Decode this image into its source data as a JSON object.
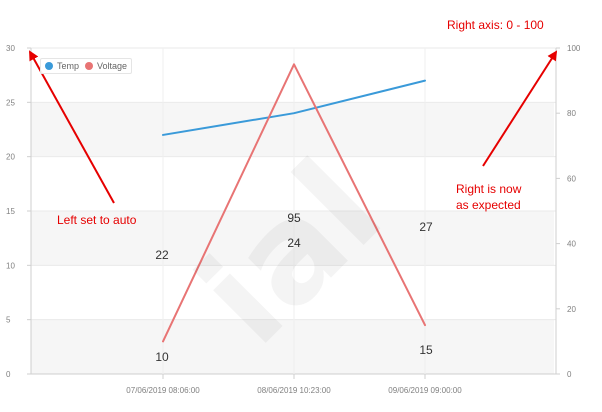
{
  "chart_data": {
    "type": "line",
    "categories": [
      "07/06/2019 08:06:00",
      "08/06/2019 10:23:00",
      "09/06/2019 09:00:00"
    ],
    "series": [
      {
        "name": "Temp",
        "axis": "left",
        "color": "#3a9ad9",
        "values": [
          22,
          24,
          27
        ]
      },
      {
        "name": "Voltage",
        "axis": "right",
        "color": "#e87474",
        "values": [
          10,
          95,
          15
        ]
      }
    ],
    "y_left": {
      "ylim": [
        0,
        30
      ],
      "ticks": [
        0,
        5,
        10,
        15,
        20,
        25,
        30
      ]
    },
    "y_right": {
      "ylim": [
        0,
        100
      ],
      "ticks": [
        0,
        20,
        40,
        60,
        80,
        100
      ]
    },
    "legend_position": "top-left",
    "grid": true
  },
  "annotations": {
    "top_right": "Right axis: 0 - 100",
    "left": "Left set to auto",
    "right_line1": "Right is now",
    "right_line2": "as expected"
  },
  "watermark": {
    "text": "ial"
  },
  "colors": {
    "annotation": "#e60000",
    "temp": "#3a9ad9",
    "voltage": "#e87474",
    "band": "#f6f6f6",
    "grid": "#eaeaea",
    "axis": "#cfcfcf",
    "tick_label": "#808080"
  }
}
